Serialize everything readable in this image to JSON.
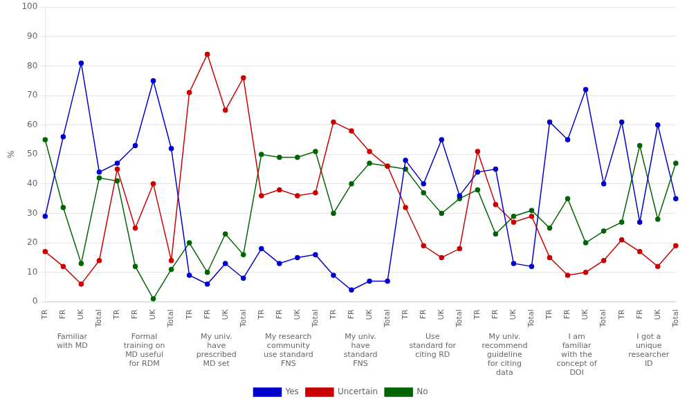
{
  "chart_data": {
    "type": "line",
    "categories": [
      "TR",
      "FR",
      "UK",
      "Total",
      "TR",
      "FR",
      "UK",
      "Total",
      "TR",
      "FR",
      "UK",
      "Total",
      "TR",
      "FR",
      "UK",
      "Total",
      "TR",
      "FR",
      "UK",
      "Total",
      "TR",
      "FR",
      "UK",
      "Total",
      "TR",
      "FR",
      "UK",
      "Total",
      "TR",
      "FR",
      "UK",
      "Total",
      "TR",
      "FR",
      "UK",
      "Total"
    ],
    "groups": [
      "Familiar\nwith MD",
      "Formal\ntraining on\nMD useful\nfor RDM",
      "My univ.\nhave\nprescribed\nMD set",
      "My research\ncommunity\nuse standard\nFNS",
      "My univ.\nhave\nstandard\nFNS",
      "Use\nstandard for\nciting RD",
      "My univ.\nrecommend\nguideline\nfor citing\ndata",
      "I am\nfamiliar\nwith the\nconcept of\nDOI",
      "I got a\nunique\nresearcher\nID"
    ],
    "series": [
      {
        "name": "Yes",
        "color": "#0000CD",
        "marker": "circle",
        "line_style": "solid",
        "values": [
          29,
          56,
          81,
          44,
          47,
          53,
          75,
          52,
          9,
          6,
          13,
          8,
          18,
          13,
          15,
          16,
          9,
          4,
          7,
          7,
          48,
          40,
          55,
          36,
          44,
          45,
          13,
          12,
          61,
          55,
          72,
          40,
          61,
          27,
          60,
          35
        ]
      },
      {
        "name": "Uncertain",
        "color": "#CC0000",
        "marker": "circle",
        "line_style": "solid",
        "values": [
          17,
          12,
          6,
          14,
          45,
          25,
          40,
          14,
          71,
          84,
          65,
          76,
          36,
          38,
          36,
          37,
          61,
          58,
          51,
          46,
          32,
          19,
          15,
          18,
          51,
          33,
          27,
          29,
          15,
          9,
          10,
          14,
          21,
          17,
          12,
          19
        ]
      },
      {
        "name": "No",
        "color": "#006400",
        "marker": "circle",
        "line_style": "solid",
        "values": [
          55,
          32,
          13,
          42,
          41,
          12,
          1,
          11,
          20,
          10,
          23,
          16,
          50,
          49,
          49,
          51,
          30,
          40,
          47,
          46,
          45,
          37,
          30,
          35,
          38,
          23,
          29,
          31,
          25,
          35,
          20,
          24,
          27,
          53,
          28,
          47
        ]
      }
    ],
    "ylabel": "%",
    "ylim": [
      0,
      100
    ],
    "yticks": [
      0,
      10,
      20,
      30,
      40,
      50,
      60,
      70,
      80,
      90,
      100
    ],
    "grid": true,
    "legend": "bottom"
  }
}
